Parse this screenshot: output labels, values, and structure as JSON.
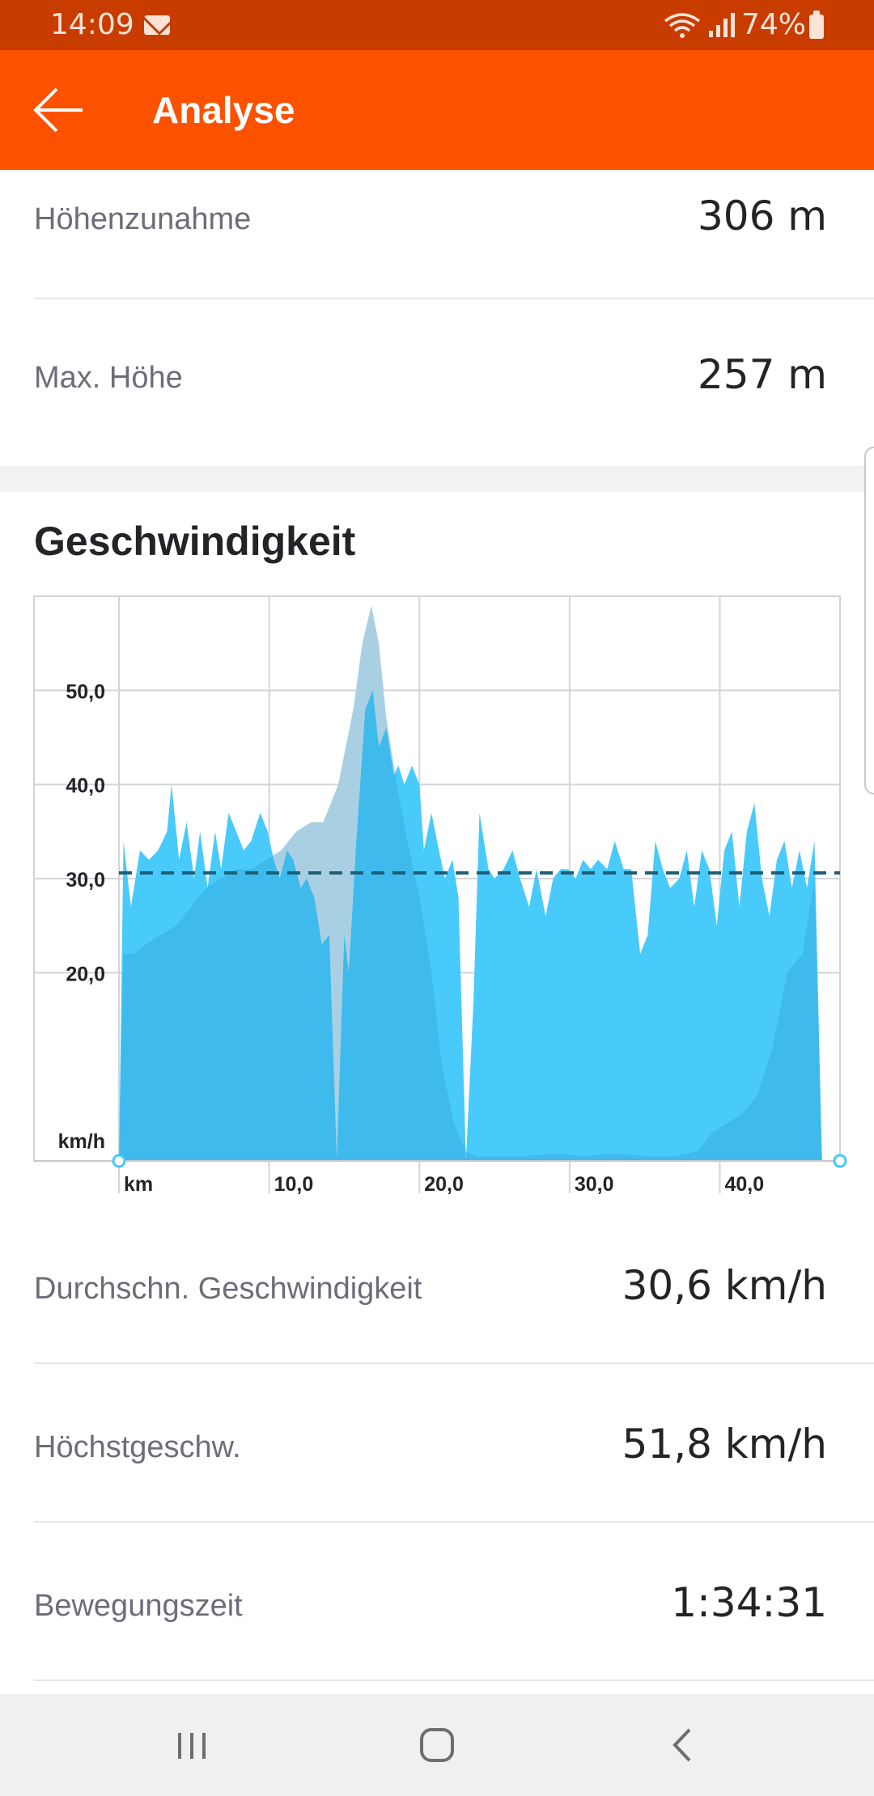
{
  "status_bar": {
    "time": "14:09",
    "battery": "74%"
  },
  "app_bar": {
    "title": "Analyse"
  },
  "elevation_stats": [
    {
      "label": "Höhenzunahme",
      "value": "306 m"
    },
    {
      "label": "Max. Höhe",
      "value": "257 m"
    }
  ],
  "speed_section": {
    "title": "Geschwindigkeit"
  },
  "chart_data": {
    "type": "area",
    "xlabel": "km",
    "ylabel": "km/h",
    "x_ticks": [
      "10,0",
      "20,0",
      "30,0",
      "40,0"
    ],
    "y_ticks": [
      "20,0",
      "30,0",
      "40,0",
      "50,0"
    ],
    "ylim": [
      0,
      60
    ],
    "xlim": [
      0,
      48
    ],
    "grid": true,
    "average_line": 30.6,
    "colors": {
      "speed": "#44c9fb",
      "elevation": "#ececec",
      "average": "#1e5f78",
      "grid": "#d4d4d8"
    },
    "series": [
      {
        "values": [
          [
            0,
            0
          ],
          [
            0.3,
            34
          ],
          [
            0.8,
            27
          ],
          [
            1.4,
            33
          ],
          [
            2.0,
            32
          ],
          [
            2.6,
            33
          ],
          [
            3.2,
            35
          ],
          [
            3.5,
            40
          ],
          [
            4.0,
            32
          ],
          [
            4.5,
            36
          ],
          [
            5.0,
            30
          ],
          [
            5.4,
            35
          ],
          [
            5.9,
            29
          ],
          [
            6.4,
            35
          ],
          [
            6.8,
            31
          ],
          [
            7.3,
            37
          ],
          [
            7.8,
            35
          ],
          [
            8.3,
            33
          ],
          [
            8.8,
            34
          ],
          [
            9.4,
            37
          ],
          [
            9.9,
            35
          ],
          [
            10.3,
            32
          ],
          [
            10.7,
            30
          ],
          [
            11.2,
            33
          ],
          [
            11.6,
            32
          ],
          [
            12.1,
            29
          ],
          [
            12.5,
            30
          ],
          [
            13.0,
            28
          ],
          [
            13.5,
            23
          ],
          [
            14.0,
            24
          ],
          [
            14.5,
            0
          ],
          [
            15.0,
            24
          ],
          [
            15.3,
            20
          ],
          [
            15.8,
            34
          ],
          [
            16.4,
            48
          ],
          [
            16.9,
            50
          ],
          [
            17.3,
            44
          ],
          [
            17.8,
            46
          ],
          [
            18.3,
            41
          ],
          [
            18.6,
            42
          ],
          [
            19.0,
            40
          ],
          [
            19.5,
            42
          ],
          [
            20.0,
            40
          ],
          [
            20.3,
            33
          ],
          [
            20.8,
            37
          ],
          [
            21.3,
            33
          ],
          [
            21.7,
            30
          ],
          [
            22.2,
            32
          ],
          [
            22.6,
            28
          ],
          [
            23.1,
            0
          ],
          [
            23.6,
            17
          ],
          [
            24.0,
            37
          ],
          [
            24.6,
            31
          ],
          [
            25.0,
            30
          ],
          [
            25.6,
            31
          ],
          [
            26.2,
            33
          ],
          [
            26.7,
            30
          ],
          [
            27.3,
            27
          ],
          [
            27.8,
            31
          ],
          [
            28.4,
            26
          ],
          [
            28.9,
            30
          ],
          [
            29.4,
            31
          ],
          [
            29.9,
            31
          ],
          [
            30.4,
            30
          ],
          [
            30.9,
            32
          ],
          [
            31.4,
            31
          ],
          [
            31.9,
            32
          ],
          [
            32.5,
            31
          ],
          [
            33.0,
            34
          ],
          [
            33.6,
            31
          ],
          [
            34.1,
            31
          ],
          [
            34.7,
            22
          ],
          [
            35.2,
            24
          ],
          [
            35.7,
            34
          ],
          [
            36.2,
            31
          ],
          [
            36.7,
            29
          ],
          [
            37.3,
            30
          ],
          [
            37.8,
            33
          ],
          [
            38.3,
            27
          ],
          [
            38.8,
            33
          ],
          [
            39.3,
            31
          ],
          [
            39.8,
            25
          ],
          [
            40.3,
            33
          ],
          [
            40.8,
            35
          ],
          [
            41.3,
            27
          ],
          [
            41.8,
            35
          ],
          [
            42.3,
            38
          ],
          [
            42.8,
            30
          ],
          [
            43.3,
            26
          ],
          [
            43.8,
            32
          ],
          [
            44.3,
            34
          ],
          [
            44.8,
            29
          ],
          [
            45.3,
            33
          ],
          [
            45.8,
            29
          ],
          [
            46.3,
            34
          ],
          [
            46.8,
            0
          ]
        ]
      }
    ],
    "elevation_background": [
      [
        0,
        0
      ],
      [
        0.3,
        22
      ],
      [
        1.0,
        22
      ],
      [
        1.8,
        23
      ],
      [
        2.8,
        24
      ],
      [
        3.8,
        25
      ],
      [
        4.8,
        27
      ],
      [
        5.8,
        29
      ],
      [
        6.8,
        30
      ],
      [
        7.8,
        31
      ],
      [
        8.8,
        31
      ],
      [
        9.8,
        32
      ],
      [
        10.8,
        33
      ],
      [
        11.8,
        35
      ],
      [
        12.8,
        36
      ],
      [
        13.6,
        36
      ],
      [
        14.6,
        40
      ],
      [
        15.6,
        48
      ],
      [
        16.2,
        55
      ],
      [
        16.8,
        59
      ],
      [
        17.3,
        55
      ],
      [
        17.8,
        47
      ],
      [
        18.5,
        40
      ],
      [
        19.2,
        34
      ],
      [
        20.0,
        28
      ],
      [
        20.8,
        20
      ],
      [
        21.5,
        10
      ],
      [
        22.3,
        4
      ],
      [
        23.1,
        1
      ],
      [
        23.8,
        0.5
      ],
      [
        25.0,
        0.5
      ],
      [
        27.0,
        0.5
      ],
      [
        29.0,
        0.8
      ],
      [
        31.0,
        0.5
      ],
      [
        33.0,
        0.8
      ],
      [
        35.0,
        0.5
      ],
      [
        37.0,
        0.5
      ],
      [
        38.5,
        1
      ],
      [
        39.5,
        3
      ],
      [
        40.5,
        4
      ],
      [
        41.5,
        5
      ],
      [
        42.5,
        7
      ],
      [
        43.5,
        12
      ],
      [
        44.5,
        20
      ],
      [
        45.5,
        22
      ],
      [
        46.3,
        30
      ],
      [
        46.8,
        0
      ]
    ]
  },
  "speed_stats": [
    {
      "label": "Durchschn. Geschwindigkeit",
      "value": "30,6 km/h"
    },
    {
      "label": "Höchstgeschw.",
      "value": "51,8 km/h"
    },
    {
      "label": "Bewegungszeit",
      "value": "1:34:31"
    }
  ]
}
